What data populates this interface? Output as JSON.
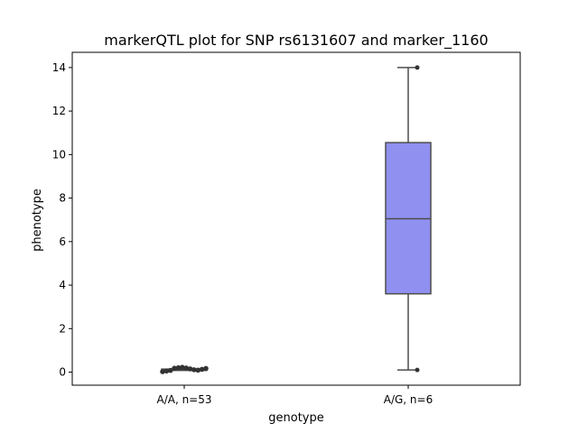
{
  "chart_data": {
    "type": "box",
    "title": "markerQTL plot for SNP rs6131607 and marker_1160",
    "xlabel": "genotype",
    "ylabel": "phenotype",
    "ylim": [
      -0.6,
      14.7
    ],
    "yticks": [
      0,
      2,
      4,
      6,
      8,
      10,
      12,
      14
    ],
    "categories": [
      "A/A, n=53",
      "A/G, n=6"
    ],
    "grid": false,
    "legend": "none",
    "box_color": "#9090f0",
    "box_edge_color": "#4d4d4d",
    "boxes": [
      {
        "category": "A/A, n=53",
        "whisker_low": 0.1,
        "q1": 0.1,
        "median": 0.12,
        "q3": 0.14,
        "whisker_high": 0.16,
        "outliers": [
          0.02,
          0.05,
          0.08,
          0.18,
          0.2,
          0.22,
          0.19,
          0.15,
          0.11,
          0.09,
          0.13,
          0.17
        ]
      },
      {
        "category": "A/G, n=6",
        "whisker_low": 0.1,
        "q1": 3.6,
        "median": 7.05,
        "q3": 10.55,
        "whisker_high": 14.0,
        "points": [
          0.1,
          14.0
        ]
      }
    ]
  }
}
